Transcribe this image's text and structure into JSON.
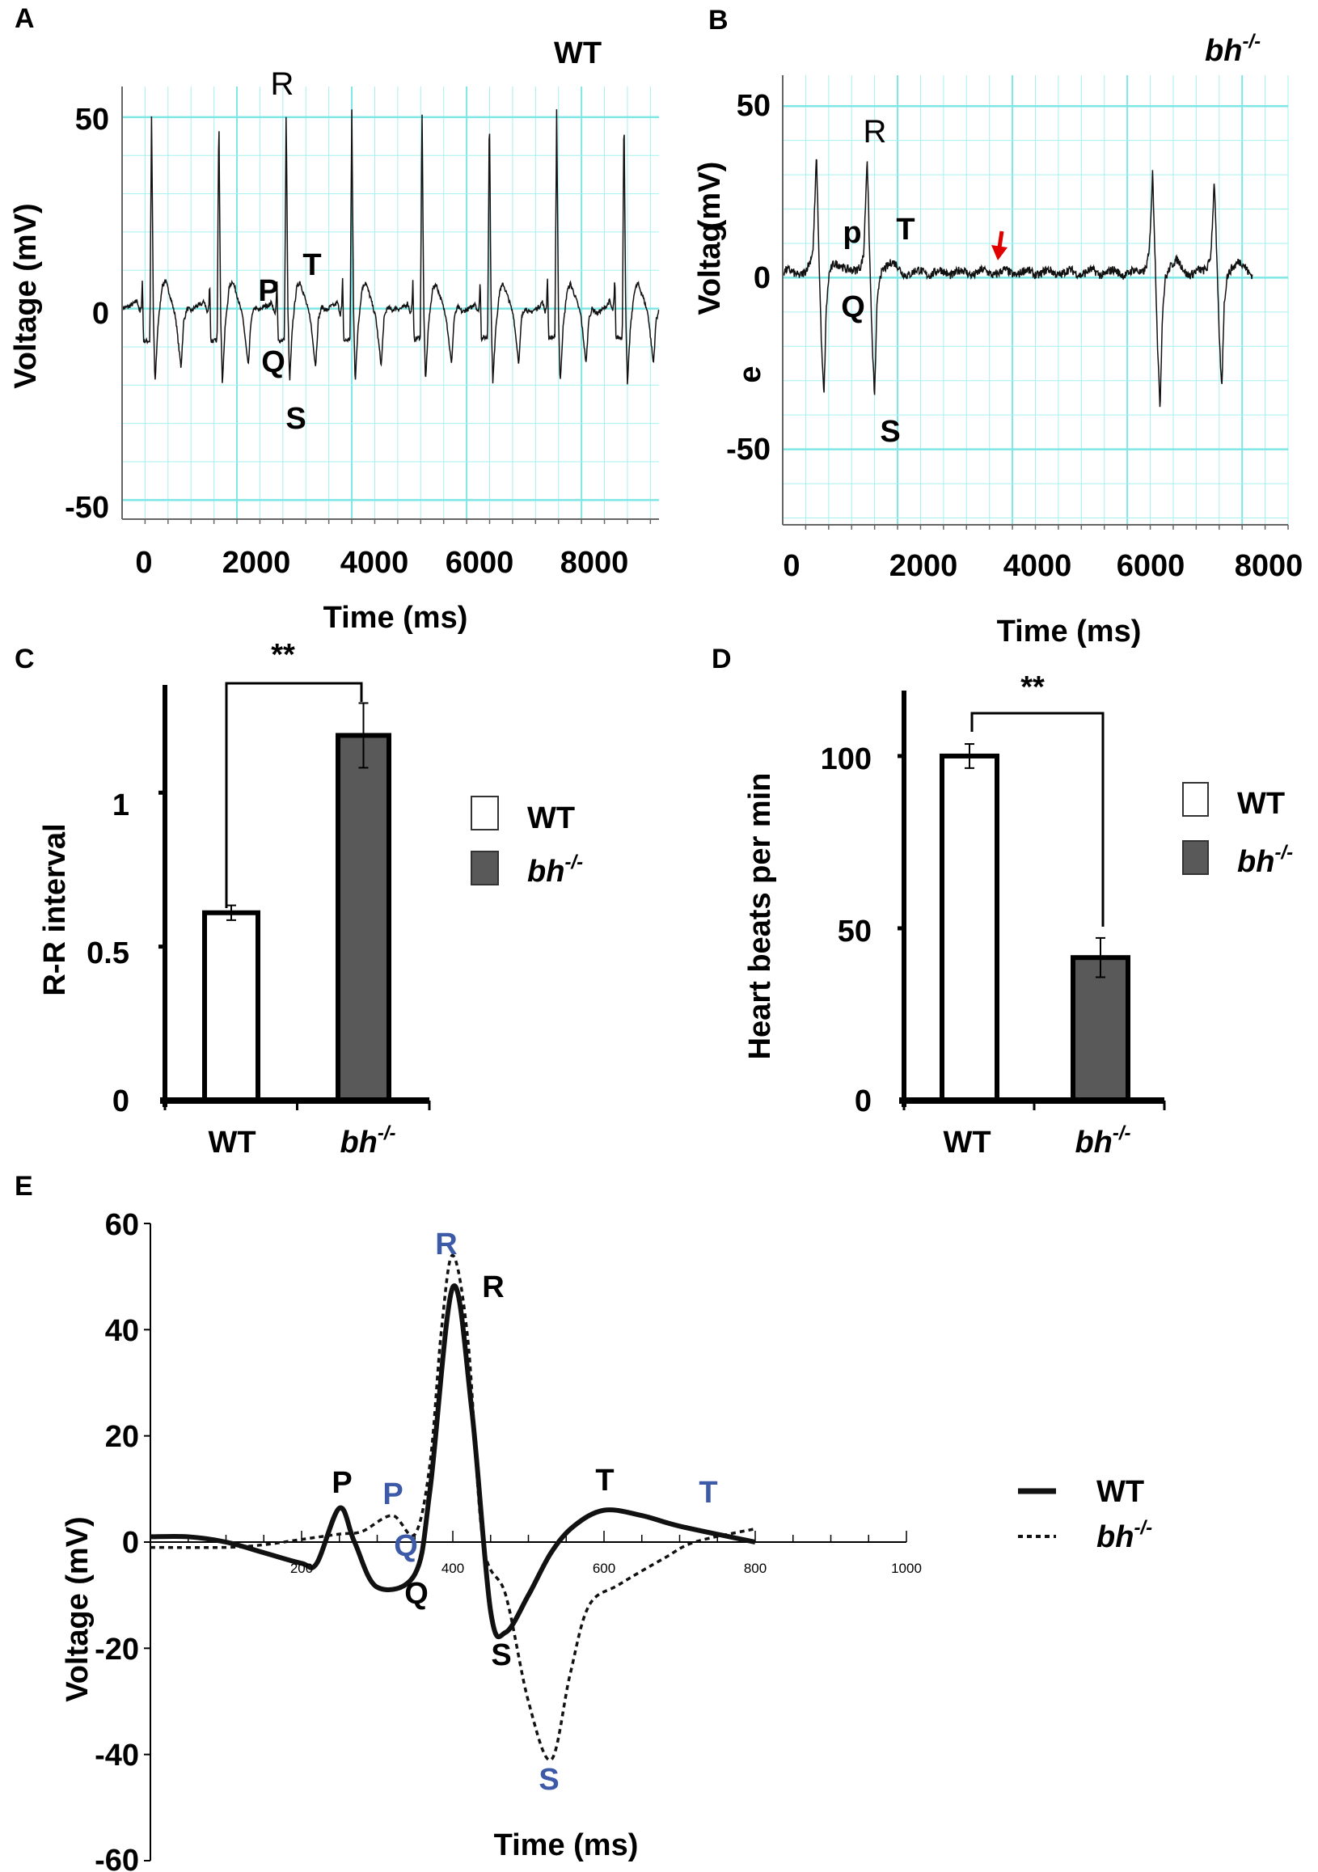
{
  "panels": {
    "a": "A",
    "b": "B",
    "c": "C",
    "d": "D",
    "e": "E"
  },
  "colors": {
    "grid": "#a6f0f0",
    "grid_major": "#7fe6e6",
    "bar_wt": "#ffffff",
    "bar_bh": "#595959",
    "accent_blue": "#3d5aa8",
    "arrow": "#e00000"
  },
  "chart_data": [
    {
      "id": "A",
      "type": "line",
      "title": "WT",
      "xlabel": "Time (ms)",
      "ylabel": "Voltage (mV)",
      "xlim": [
        0,
        9350
      ],
      "ylim": [
        -55,
        58
      ],
      "xticks": [
        "0",
        "2000",
        "4000",
        "6000",
        "8000"
      ],
      "yticks": [
        "50",
        "-50",
        "0"
      ],
      "r_peak_times": [
        513,
        1685,
        2857,
        4000,
        5223,
        6396,
        7568,
        8740
      ],
      "beat_template": [
        [
          -400,
          0
        ],
        [
          -300,
          1
        ],
        [
          -250,
          2
        ],
        [
          -200,
          -1
        ],
        [
          -175,
          1
        ],
        [
          -160,
          8
        ],
        [
          -140,
          -8
        ],
        [
          -30,
          -8
        ],
        [
          0,
          52
        ],
        [
          30,
          0
        ],
        [
          60,
          -20
        ],
        [
          110,
          -5
        ],
        [
          180,
          5
        ],
        [
          240,
          7
        ],
        [
          330,
          3
        ],
        [
          420,
          -2
        ],
        [
          513,
          -15
        ],
        [
          560,
          -3
        ],
        [
          620,
          0
        ],
        [
          700,
          -1
        ],
        [
          770,
          0
        ]
      ],
      "annotations": {
        "R": "R",
        "P": "P",
        "Q": "Q",
        "S": "S",
        "T": "T"
      }
    },
    {
      "id": "B",
      "type": "line",
      "title": "bh",
      "title_sup": "-/-",
      "xlabel": "Time (ms)",
      "ylabel_part1": "Voltag",
      "ylabel_part2": "(mV)",
      "ylabel_part3": "e",
      "xlim": [
        0,
        8800
      ],
      "ylim": [
        -72,
        59
      ],
      "xticks": [
        "0",
        "2000",
        "4000",
        "6000",
        "8000"
      ],
      "yticks": [
        "50",
        "0",
        "-50"
      ],
      "beats": [
        {
          "t": 588,
          "r": 35,
          "s": -36
        },
        {
          "t": 1470,
          "r": 35,
          "s": -37
        },
        {
          "t": 6441,
          "r": 29,
          "s": -40
        },
        {
          "t": 7515,
          "r": 28,
          "s": -35
        }
      ],
      "trace_end": 8176,
      "arrow_time": 3780,
      "annotations": {
        "R": "R",
        "p": "p",
        "Q": "Q",
        "S": "S",
        "T": "T"
      }
    },
    {
      "id": "C",
      "type": "bar",
      "ylabel": "R-R interval",
      "categories": [
        "WT",
        "bh"
      ],
      "category_sup": [
        "",
        "-/-"
      ],
      "values": [
        0.61,
        1.186
      ],
      "errors": [
        0.024,
        0.105
      ],
      "ylim": [
        0,
        1.35
      ],
      "yticks": [
        "0",
        "0.5",
        "1"
      ],
      "significance": "**",
      "legend": [
        {
          "label": "WT",
          "sup": ""
        },
        {
          "label": "bh",
          "sup": "-/-"
        }
      ]
    },
    {
      "id": "D",
      "type": "bar",
      "ylabel": "Heart beats per min",
      "categories": [
        "WT",
        "bh"
      ],
      "category_sup": [
        "",
        "-/-"
      ],
      "values": [
        100,
        41.5
      ],
      "errors": [
        3.5,
        5.7
      ],
      "ylim": [
        0,
        119
      ],
      "yticks": [
        "0",
        "50",
        "100"
      ],
      "significance": "**",
      "legend": [
        {
          "label": "WT",
          "sup": ""
        },
        {
          "label": "bh",
          "sup": "-/-"
        }
      ]
    },
    {
      "id": "E",
      "type": "line",
      "xlabel": "Time (ms)",
      "ylabel": "Voltage (mV)",
      "xlim": [
        0,
        1000
      ],
      "ylim": [
        -60,
        60
      ],
      "xticks": [
        "200",
        "400",
        "600",
        "800",
        "1000"
      ],
      "yticks": [
        "60",
        "40",
        "20",
        "0",
        "-20",
        "-40",
        "-60"
      ],
      "series": [
        {
          "name": "WT",
          "sup": "",
          "style": "solid",
          "points": [
            [
              0,
              1
            ],
            [
              50,
              1
            ],
            [
              100,
              0
            ],
            [
              150,
              -2
            ],
            [
              200,
              -4
            ],
            [
              220,
              -4
            ],
            [
              250,
              6.4
            ],
            [
              270,
              0
            ],
            [
              300,
              -8.5
            ],
            [
              350,
              -6
            ],
            [
              370,
              10
            ],
            [
              400,
              48
            ],
            [
              425,
              25
            ],
            [
              450,
              -13
            ],
            [
              470,
              -17
            ],
            [
              500,
              -10
            ],
            [
              530,
              -2
            ],
            [
              560,
              3
            ],
            [
              600,
              6
            ],
            [
              650,
              5
            ],
            [
              700,
              3
            ],
            [
              800,
              0
            ]
          ]
        },
        {
          "name": "bh",
          "sup": "-/-",
          "style": "dashed",
          "points": [
            [
              0,
              -1
            ],
            [
              100,
              -1
            ],
            [
              150,
              -0.5
            ],
            [
              200,
              0.5
            ],
            [
              250,
              1.5
            ],
            [
              280,
              2
            ],
            [
              320,
              5
            ],
            [
              350,
              1.5
            ],
            [
              370,
              15
            ],
            [
              385,
              40
            ],
            [
              400,
              54
            ],
            [
              420,
              38
            ],
            [
              440,
              0
            ],
            [
              470,
              -10
            ],
            [
              500,
              -30
            ],
            [
              530,
              -41
            ],
            [
              555,
              -25
            ],
            [
              580,
              -12
            ],
            [
              620,
              -8
            ],
            [
              680,
              -3
            ],
            [
              720,
              0
            ],
            [
              800,
              2.5
            ]
          ]
        }
      ],
      "annotations_wt": {
        "P": "P",
        "Q": "Q",
        "R": "R",
        "S": "S",
        "T": "T"
      },
      "annotations_bh": {
        "P": "P",
        "Q": "Q",
        "R": "R",
        "S": "S",
        "T": "T"
      }
    }
  ]
}
